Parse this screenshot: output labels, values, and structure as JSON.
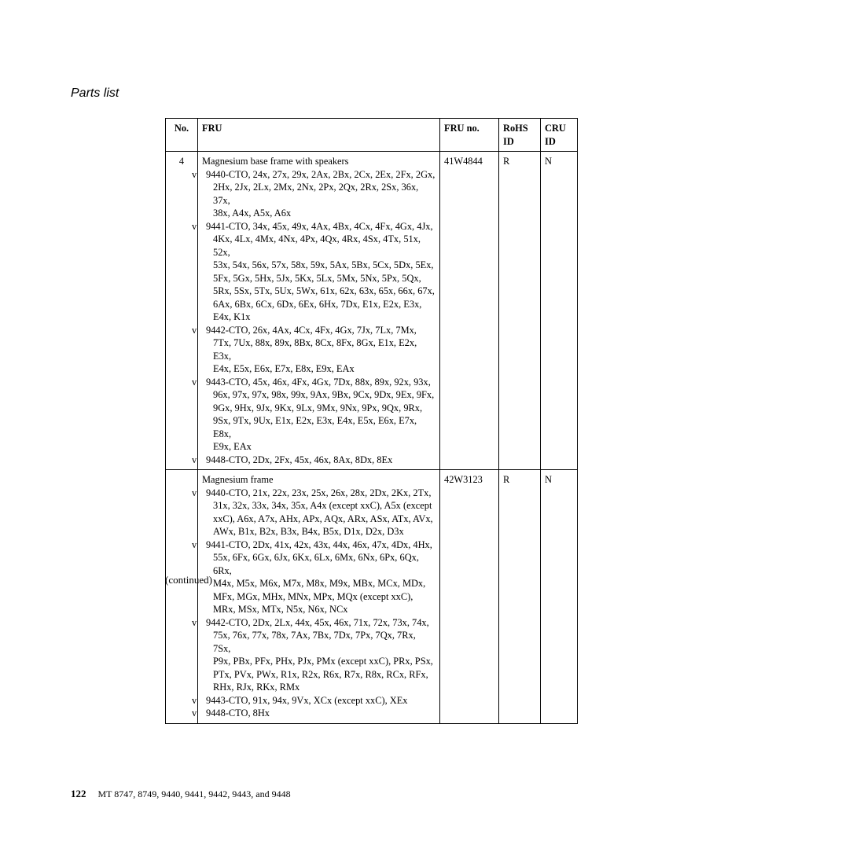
{
  "sectionTitle": "Parts list",
  "headers": {
    "no": "No.",
    "fru": "FRU",
    "frun": "FRU no.",
    "rohs1": "RoHS",
    "rohs2": "ID",
    "cru1": "CRU",
    "cru2": "ID"
  },
  "row1": {
    "no": "4",
    "title": "Magnesium base frame with speakers",
    "b1": "v",
    "l1a": "9440-CTO, 24x, 27x, 29x, 2Ax, 2Bx, 2Cx, 2Ex, 2Fx, 2Gx,",
    "l1b": "2Hx, 2Jx, 2Lx, 2Mx, 2Nx, 2Px, 2Qx, 2Rx, 2Sx, 36x, 37x,",
    "l1c": "38x, A4x, A5x, A6x",
    "b2": "v",
    "l2a": "9441-CTO, 34x, 45x, 49x, 4Ax, 4Bx, 4Cx, 4Fx, 4Gx, 4Jx,",
    "l2b": "4Kx, 4Lx, 4Mx, 4Nx, 4Px, 4Qx, 4Rx, 4Sx, 4Tx, 51x, 52x,",
    "l2c": "53x, 54x, 56x, 57x, 58x, 59x, 5Ax, 5Bx, 5Cx, 5Dx, 5Ex,",
    "l2d": "5Fx, 5Gx, 5Hx, 5Jx, 5Kx, 5Lx, 5Mx, 5Nx, 5Px, 5Qx,",
    "l2e": "5Rx, 5Sx, 5Tx, 5Ux, 5Wx, 61x, 62x, 63x, 65x, 66x, 67x,",
    "l2f": "6Ax, 6Bx, 6Cx, 6Dx, 6Ex, 6Hx, 7Dx, E1x, E2x, E3x,",
    "l2g": "E4x, K1x",
    "b3": "v",
    "l3a": "9442-CTO, 26x, 4Ax, 4Cx, 4Fx, 4Gx, 7Jx, 7Lx, 7Mx,",
    "l3b": "7Tx, 7Ux, 88x, 89x, 8Bx, 8Cx, 8Fx, 8Gx, E1x, E2x, E3x,",
    "l3c": "E4x, E5x, E6x, E7x, E8x, E9x, EAx",
    "b4": "v",
    "l4a": "9443-CTO, 45x, 46x, 4Fx, 4Gx, 7Dx, 88x, 89x, 92x, 93x,",
    "l4b": "96x, 97x, 97x, 98x, 99x, 9Ax, 9Bx, 9Cx, 9Dx, 9Ex, 9Fx,",
    "l4c": "9Gx, 9Hx, 9Jx, 9Kx, 9Lx, 9Mx, 9Nx, 9Px, 9Qx, 9Rx,",
    "l4d": "9Sx, 9Tx, 9Ux, E1x, E2x, E3x, E4x, E5x, E6x, E7x, E8x,",
    "l4e": "E9x, EAx",
    "b5": "v",
    "l5a": "9448-CTO, 2Dx, 2Fx, 45x, 46x, 8Ax, 8Dx, 8Ex",
    "frun": "41W4844",
    "rohs": "R",
    "cru": "N"
  },
  "row2": {
    "title": "Magnesium frame",
    "b1": "v",
    "l1a": "9440-CTO, 21x, 22x, 23x, 25x, 26x, 28x, 2Dx, 2Kx, 2Tx,",
    "l1b": "31x, 32x, 33x, 34x, 35x, A4x (except xxC), A5x (except",
    "l1c": "xxC), A6x, A7x, AHx, APx, AQx, ARx, ASx, ATx, AVx,",
    "l1d": "AWx, B1x, B2x, B3x, B4x, B5x, D1x, D2x, D3x",
    "b2": "v",
    "l2a": "9441-CTO, 2Dx, 41x, 42x, 43x, 44x, 46x, 47x, 4Dx, 4Hx,",
    "l2b": "55x, 6Fx, 6Gx, 6Jx, 6Kx, 6Lx, 6Mx, 6Nx, 6Px, 6Qx, 6Rx,",
    "l2c": "M4x, M5x, M6x, M7x, M8x, M9x, MBx, MCx, MDx,",
    "l2d": "MFx, MGx, MHx, MNx, MPx, MQx (except xxC),",
    "l2e": "MRx, MSx, MTx, N5x, N6x, NCx",
    "b3": "v",
    "l3a": "9442-CTO, 2Dx, 2Lx, 44x, 45x, 46x, 71x, 72x, 73x, 74x,",
    "l3b": "75x, 76x, 77x, 78x, 7Ax, 7Bx, 7Dx, 7Px, 7Qx, 7Rx, 7Sx,",
    "l3c": "P9x, PBx, PFx, PHx, PJx, PMx (except xxC), PRx, PSx,",
    "l3d": "PTx, PVx, PWx, R1x, R2x, R6x, R7x, R8x, RCx, RFx,",
    "l3e": "RHx, RJx, RKx, RMx",
    "b4": "v",
    "l4a": "9443-CTO, 91x, 94x, 9Vx, XCx (except xxC), XEx",
    "b5": "v",
    "l5a": "9448-CTO, 8Hx",
    "frun": "42W3123",
    "rohs": "R",
    "cru": "N"
  },
  "continued": "(continued)",
  "footer": {
    "pagenum": "122",
    "text": "MT 8747, 8749, 9440, 9441, 9442, 9443, and 9448"
  }
}
